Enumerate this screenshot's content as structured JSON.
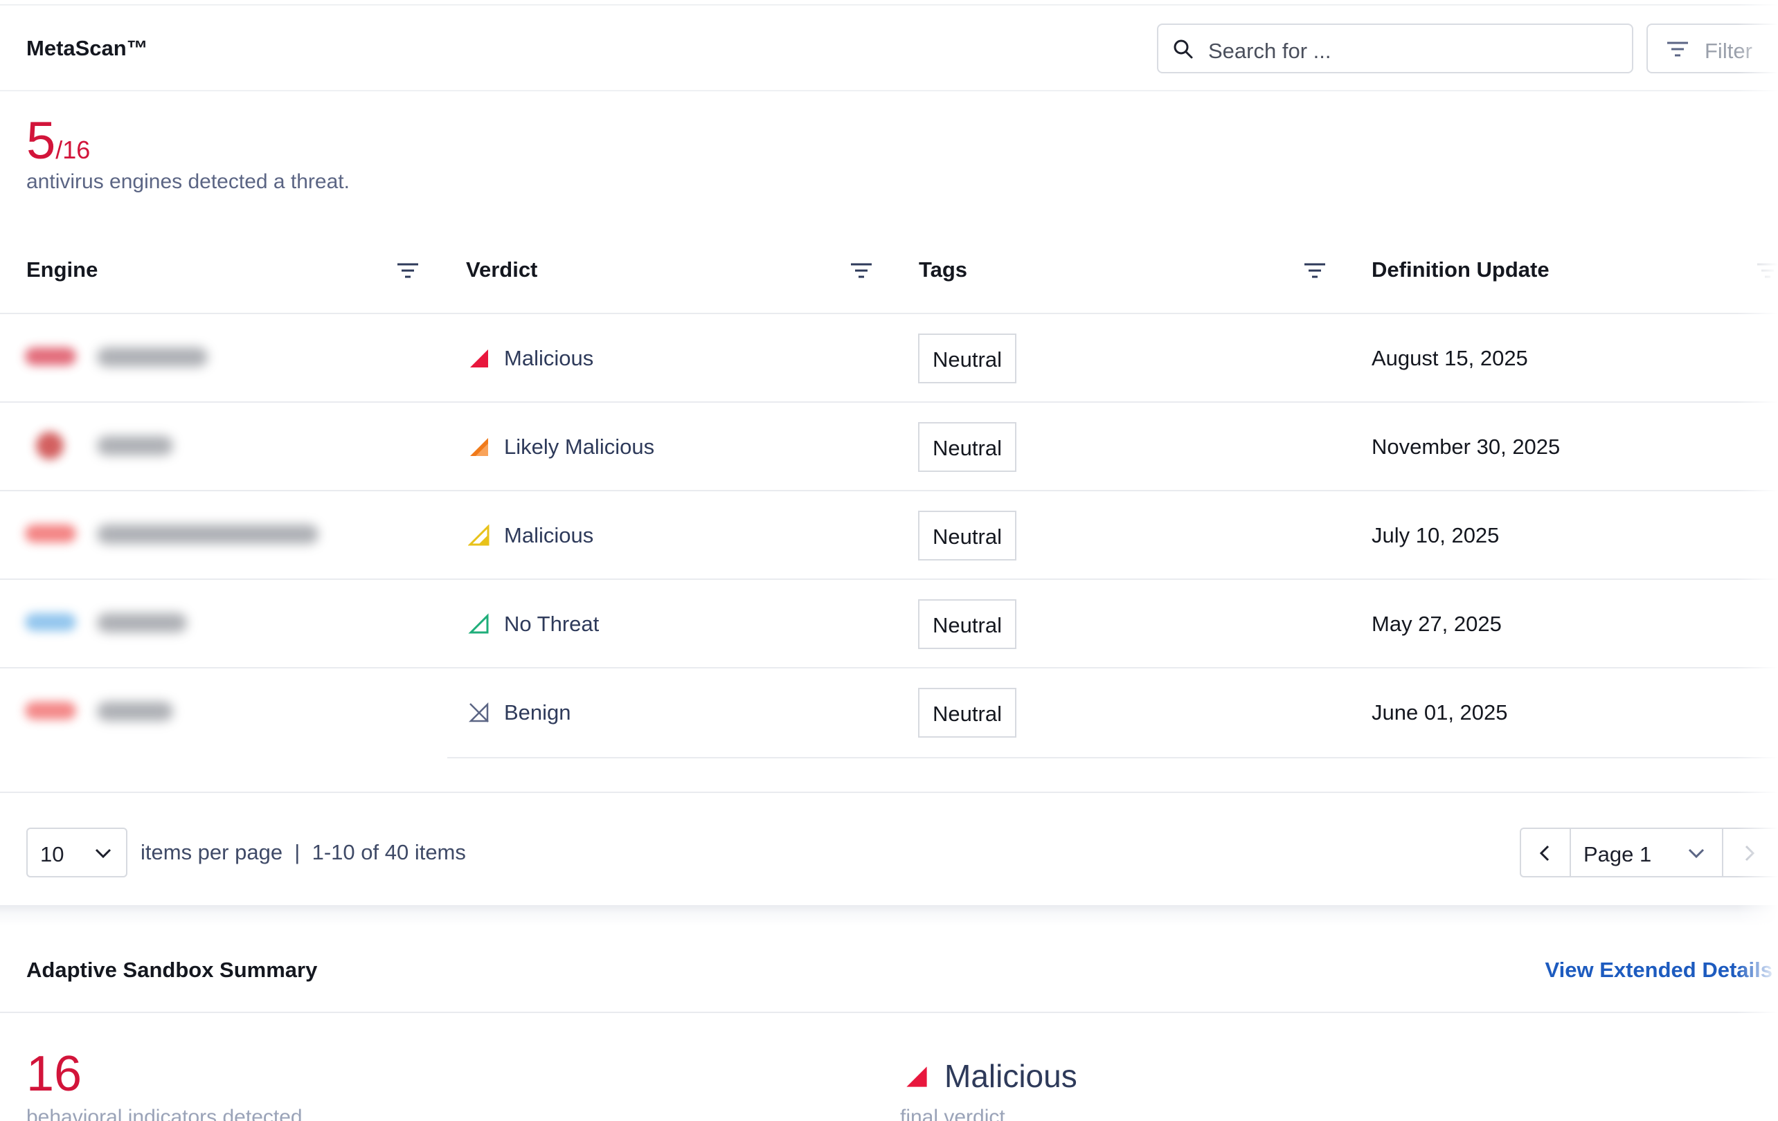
{
  "header": {
    "brand": "MetaScan™",
    "search_placeholder": "Search for ...",
    "filter_label": "Filter"
  },
  "summary": {
    "detected": "5",
    "total": "/16",
    "description": "antivirus engines detected a threat."
  },
  "table": {
    "columns": [
      "Engine",
      "Verdict",
      "Tags",
      "Definition Update"
    ],
    "rows": [
      {
        "engine_color": "#d93b4e",
        "verdict_icon": "verdict-high-icon",
        "verdict_color": "#e8173d",
        "verdict": "Malicious",
        "tag": "Neutral",
        "date": "August 15, 2025"
      },
      {
        "engine_color": "#c42a2a",
        "verdict_icon": "verdict-medium-high-icon",
        "verdict_color": "#f07a1a",
        "verdict": "Likely Malicious",
        "tag": "Neutral",
        "date": "November 30, 2025"
      },
      {
        "engine_color": "#f05a5a",
        "verdict_icon": "verdict-medium-icon",
        "verdict_color": "#e8c21a",
        "verdict": "Malicious",
        "tag": "Neutral",
        "date": "July 10, 2025"
      },
      {
        "engine_color": "#6fb3e8",
        "verdict_icon": "verdict-low-icon",
        "verdict_color": "#1fae7a",
        "verdict": "No Threat",
        "tag": "Neutral",
        "date": "May 27, 2025"
      },
      {
        "engine_color": "#f06060",
        "verdict_icon": "verdict-none-icon",
        "verdict_color": "#5b6584",
        "verdict": "Benign",
        "tag": "Neutral",
        "date": "June 01, 2025"
      }
    ]
  },
  "pagination": {
    "per_page": "10",
    "per_page_label": "items per page",
    "separator": "|",
    "range_label": "1-10 of 40 items",
    "page_label": "Page 1"
  },
  "sandbox": {
    "title": "Adaptive Sandbox Summary",
    "link": "View Extended Details",
    "count": "16",
    "count_label": "behavioral indicators detected",
    "verdict": "Malicious",
    "verdict_label": "final verdict"
  },
  "colors": {
    "accent_red": "#d2143a",
    "link_blue": "#1d5bbf"
  }
}
